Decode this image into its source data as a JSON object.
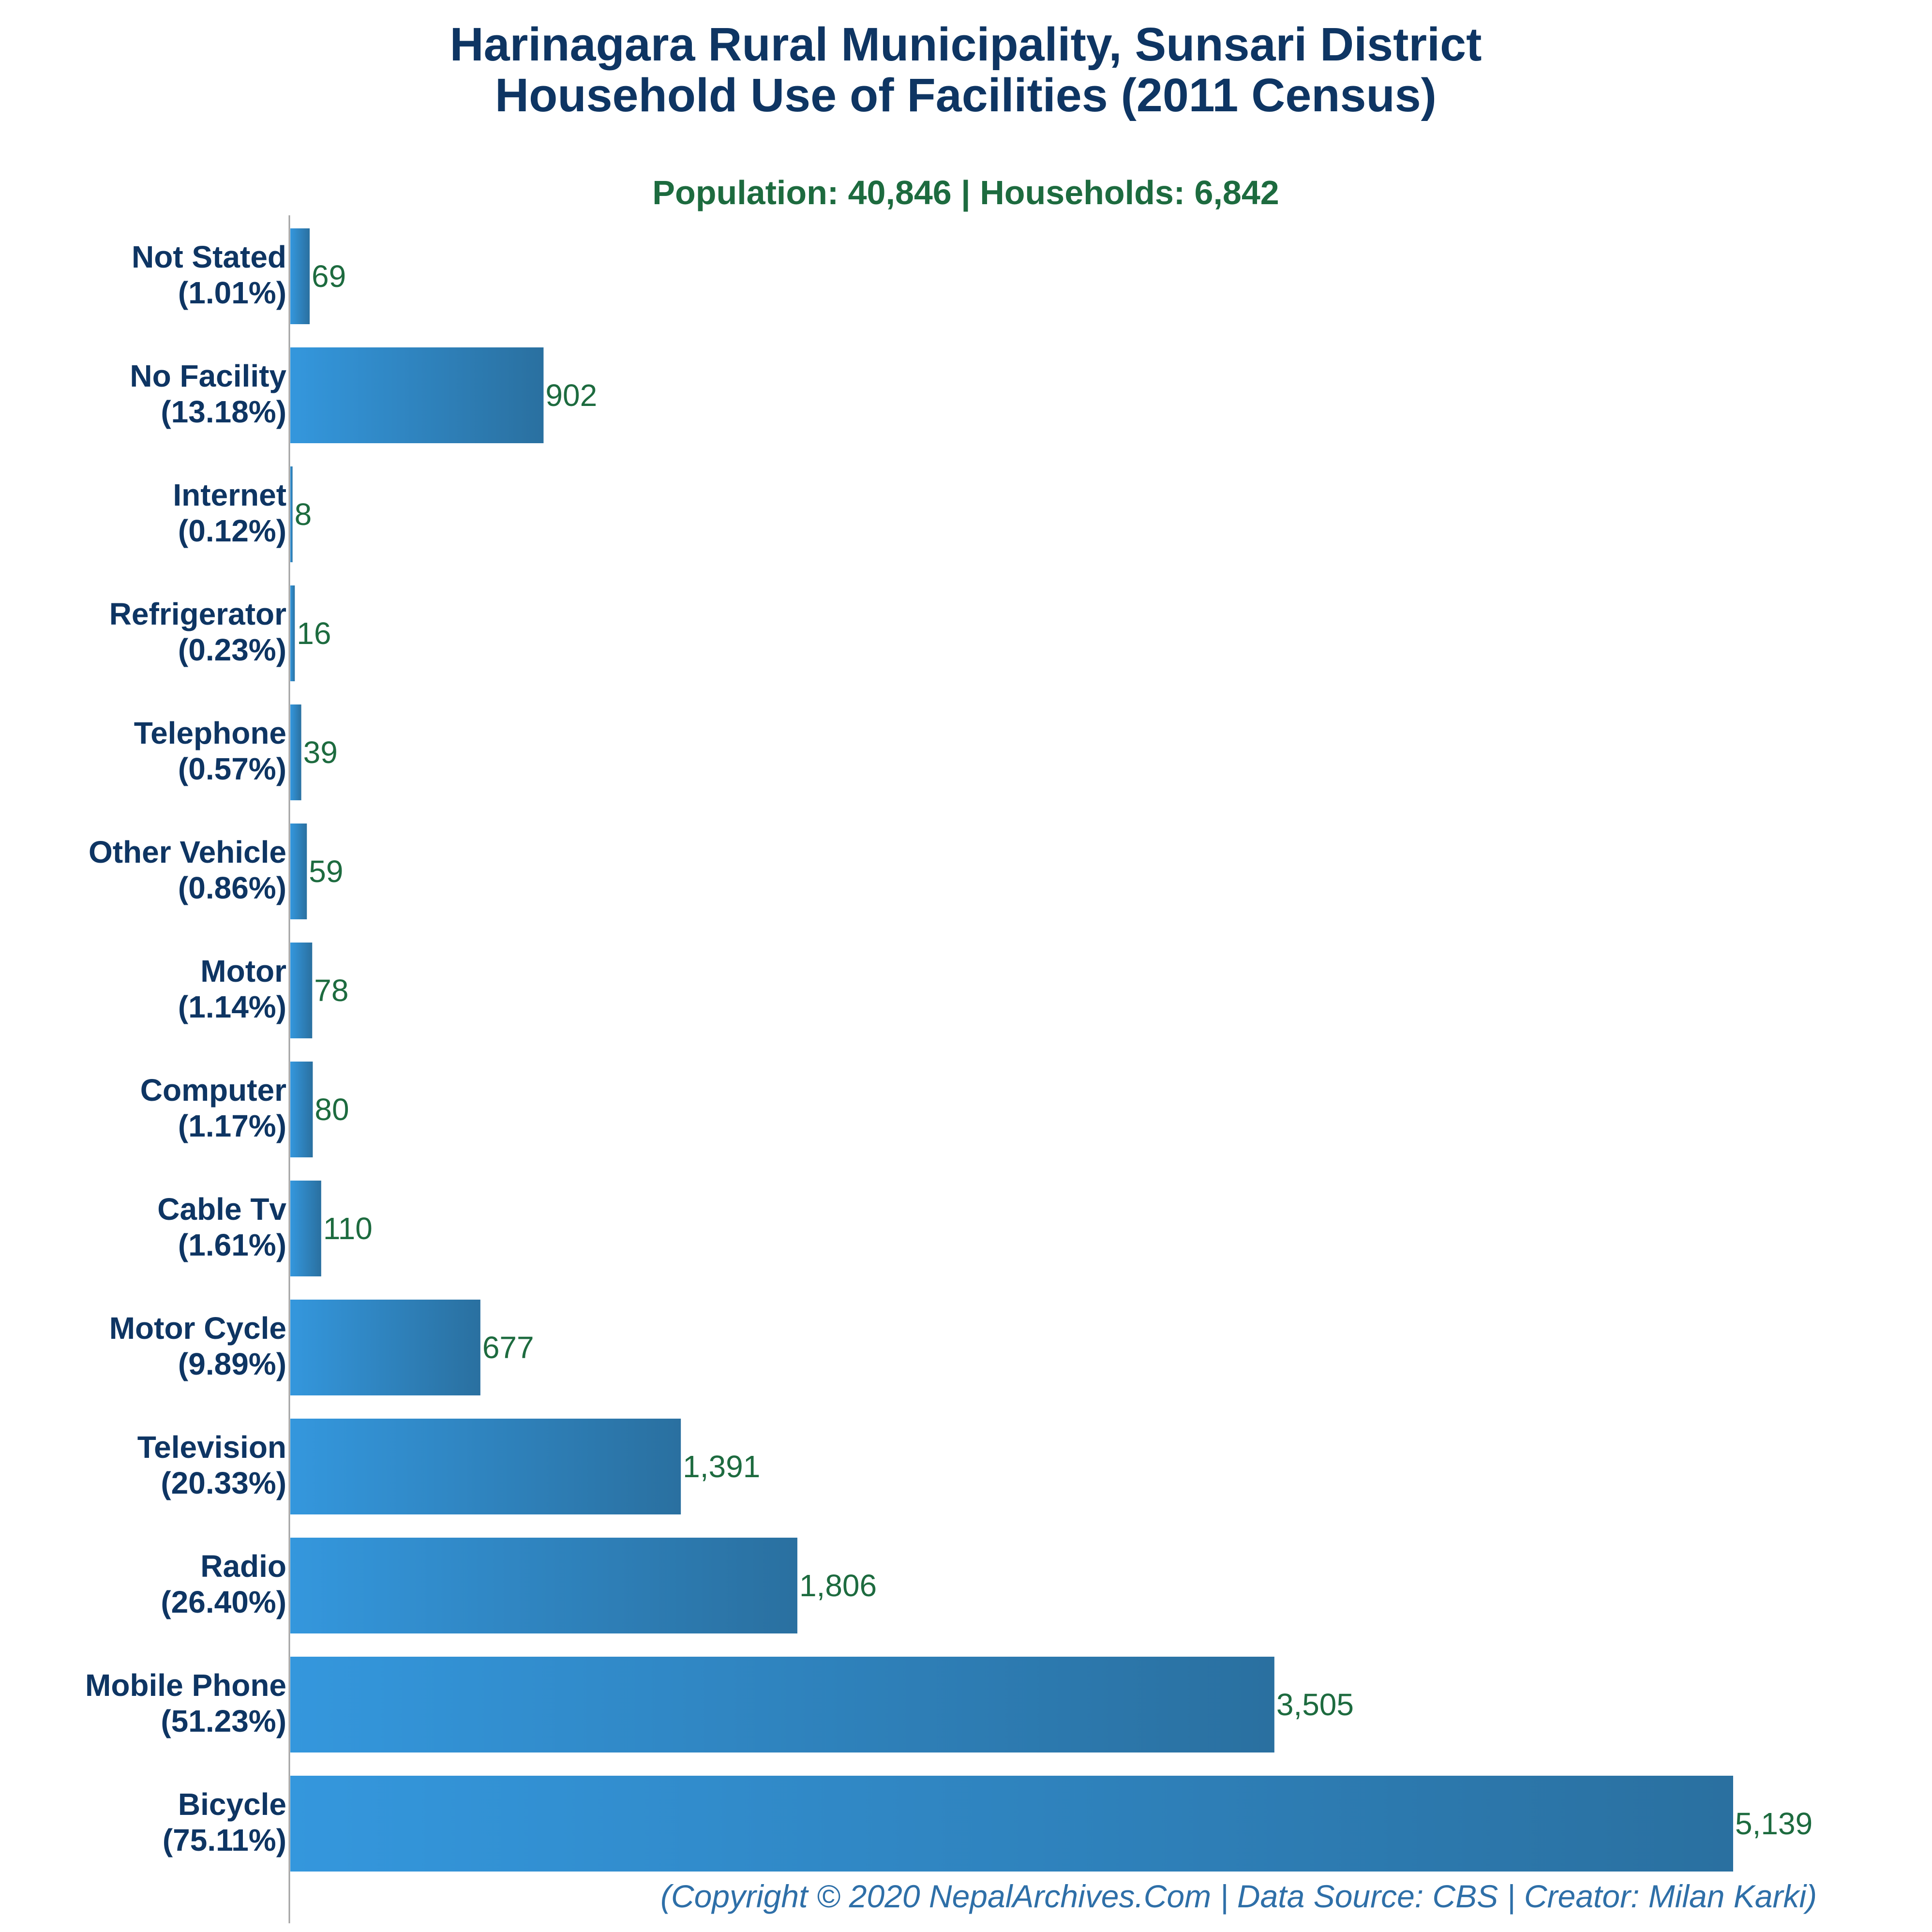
{
  "chart_data": {
    "type": "bar",
    "orientation": "horizontal",
    "title_line1": "Harinagara Rural Municipality, Sunsari District",
    "title_line2": "Household Use of Facilities (2011 Census)",
    "subtitle": "Population: 40,846 | Households: 6,842",
    "footer": "(Copyright © 2020 NepalArchives.Com | Data Source: CBS | Creator: Milan Karki)",
    "xlim": [
      0,
      5139
    ],
    "grid": false,
    "colors": {
      "bar_start": "#3497dd",
      "bar_end": "#2a70a0",
      "title": "#0e3563",
      "value": "#1d6b3f",
      "footer": "#2e6fa8"
    },
    "categories": [
      "Not Stated",
      "No Facility",
      "Internet",
      "Refrigerator",
      "Telephone",
      "Other Vehicle",
      "Motor",
      "Computer",
      "Cable Tv",
      "Motor Cycle",
      "Television",
      "Radio",
      "Mobile Phone",
      "Bicycle"
    ],
    "percent_labels": [
      "(1.01%)",
      "(13.18%)",
      "(0.12%)",
      "(0.23%)",
      "(0.57%)",
      "(0.86%)",
      "(1.14%)",
      "(1.17%)",
      "(1.61%)",
      "(9.89%)",
      "(20.33%)",
      "(26.40%)",
      "(51.23%)",
      "(75.11%)"
    ],
    "values": [
      69,
      902,
      8,
      16,
      39,
      59,
      78,
      80,
      110,
      677,
      1391,
      1806,
      3505,
      5139
    ],
    "value_labels": [
      "69",
      "902",
      "8",
      "16",
      "39",
      "59",
      "78",
      "80",
      "110",
      "677",
      "1,391",
      "1,806",
      "3,505",
      "5,139"
    ]
  }
}
